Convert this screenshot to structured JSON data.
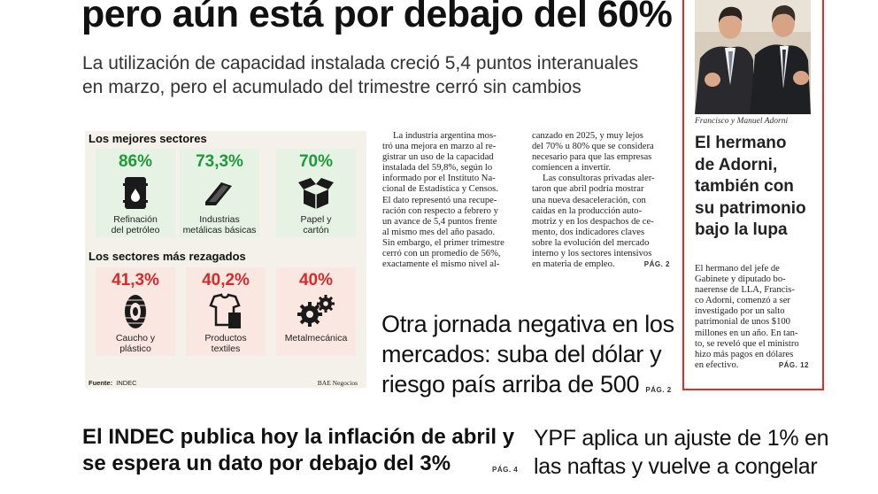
{
  "headline": {
    "line": "pero aún está por debajo del 60%"
  },
  "subhead": {
    "line1": "La utilización de capacidad instalada creció 5,4 puntos interanuales",
    "line2": "en marzo, pero el acumulado del trimestre cerró sin cambios"
  },
  "infographic": {
    "best_title": "Los mejores sectores",
    "worst_title": "Los sectores más rezagados",
    "best": [
      {
        "pct": "86%",
        "label1": "Refinación",
        "label2": "del petróleo",
        "icon": "oil-barrel-icon"
      },
      {
        "pct": "73,3%",
        "label1": "Industrias",
        "label2": "metálicas básicas",
        "icon": "steel-beam-icon"
      },
      {
        "pct": "70%",
        "label1": "Papel y",
        "label2": "cartón",
        "icon": "open-box-icon"
      }
    ],
    "worst": [
      {
        "pct": "41,3%",
        "label1": "Caucho y",
        "label2": "plástico",
        "icon": "tire-icon"
      },
      {
        "pct": "40,2%",
        "label1": "Productos",
        "label2": "textiles",
        "icon": "clothing-icon"
      },
      {
        "pct": "40%",
        "label1": "Metalmecánica",
        "label2": "",
        "icon": "gears-icon"
      }
    ],
    "source_label": "Fuente:",
    "source_value": "INDEC",
    "credit": "BAE Negocios"
  },
  "article": {
    "col1": [
      "La industria argentina mos-",
      "tró una mejora en marzo al re-",
      "gistrar un uso de la capacidad",
      "instalada del 59,8%, según lo",
      "informado por el Instituto Na-",
      "cional de Estadística y Censos.",
      "El dato representó una recupe-",
      "ración con respecto a febrero y",
      "un avance de 5,4 puntos frente",
      "al mismo mes del año pasado.",
      "Sin embargo, el primer trimestre",
      "cerró con un promedio de 56%,",
      "exactamente el mismo nivel al-"
    ],
    "col2a": [
      "canzado en 2025, y muy lejos",
      "del 70% u 80% que se considera",
      "necesario para que las empresas",
      "comiencen a invertir."
    ],
    "col2b": [
      "Las consultoras privadas aler-",
      "taron que abril podría mostrar",
      "una nueva desaceleración, con",
      "caídas en la producción auto-",
      "motriz y en los despachos de ce-",
      "mento, dos indicadores claves",
      "sobre la evolución del mercado",
      "interno y los sectores intensivos",
      "en materia de empleo."
    ],
    "page_ref": "PÁG. 2"
  },
  "markets": {
    "line1": "Otra jornada negativa en los",
    "line2": "mercados: suba del dólar y",
    "line3": "riesgo país arriba de 500",
    "page_ref": "PÁG. 2"
  },
  "sidebar": {
    "caption": "Francisco y Manuel Adorni",
    "head": [
      "El hermano",
      "de Adorni,",
      "también con",
      "su patrimonio",
      "bajo la lupa"
    ],
    "body": [
      "El hermano del jefe de",
      "Gabinete y diputado bo-",
      "naerense de LLA, Francis-",
      "co Adorni, comenzó a ser",
      "investigado por un salto",
      "patrimonial de unos $100",
      "millones en un año. En tan-",
      "to, se reveló que el ministro",
      "hizo más pagos en dólares",
      "en efectivo."
    ],
    "page_ref": "PÁG. 12"
  },
  "bottom_left": {
    "line1": "El INDEC publica hoy la inflación de abril y",
    "line2": "se espera un dato por debajo del 3%",
    "page_ref": "PÁG. 4"
  },
  "bottom_right": {
    "line1": "YPF aplica un ajuste de 1% en",
    "line2": "las naftas y vuelve a congelar"
  },
  "colors": {
    "good": "#1f9a3a",
    "bad": "#d42b2b",
    "frame": "#d9302a"
  }
}
